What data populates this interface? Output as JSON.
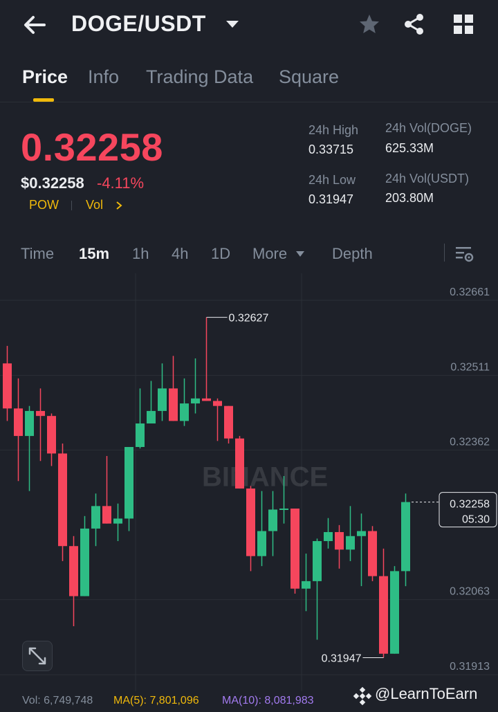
{
  "header": {
    "pair": "DOGE/USDT",
    "icons": [
      "back-arrow-icon",
      "caret-down-icon",
      "star-icon",
      "share-icon",
      "grid-icon"
    ]
  },
  "tabs": [
    {
      "label": "Price",
      "active": true
    },
    {
      "label": "Info",
      "active": false
    },
    {
      "label": "Trading Data",
      "active": false
    },
    {
      "label": "Square",
      "active": false
    }
  ],
  "ticker": {
    "last_price": "0.32258",
    "usd_price": "$0.32258",
    "change": "-4.11%",
    "tags": [
      "POW",
      "Vol"
    ],
    "high_label": "24h High",
    "high_value": "0.33715",
    "low_label": "24h Low",
    "low_value": "0.31947",
    "vol_base_label": "24h Vol(DOGE)",
    "vol_base_value": "625.33M",
    "vol_quote_label": "24h Vol(USDT)",
    "vol_quote_value": "203.80M"
  },
  "intervals": [
    {
      "label": "Time",
      "active": false
    },
    {
      "label": "15m",
      "active": true
    },
    {
      "label": "1h",
      "active": false
    },
    {
      "label": "4h",
      "active": false
    },
    {
      "label": "1D",
      "active": false
    },
    {
      "label": "More",
      "active": false
    },
    {
      "label": "Depth",
      "active": false
    }
  ],
  "colors": {
    "up": "#2ebd85",
    "down": "#f6465d",
    "accent": "#f0b90b",
    "ma5": "#f0b90b",
    "ma10": "#a37bf0"
  },
  "chart_data": {
    "type": "candlestick",
    "ylim": [
      0.3188,
      0.32715
    ],
    "y_ticks": [
      "0.32661",
      "0.32511",
      "0.32362",
      "0.32063",
      "0.31913"
    ],
    "high_marker": "0.32627",
    "low_marker": "0.31947",
    "last_price_label": "0.32258",
    "countdown": "05:30",
    "watermark": "BINANCE",
    "candles": [
      [
        0.32535,
        0.32445,
        0.3257,
        0.3242
      ],
      [
        0.32445,
        0.3239,
        0.32505,
        0.323
      ],
      [
        0.3239,
        0.3244,
        0.3245,
        0.3228
      ],
      [
        0.3244,
        0.3243,
        0.32485,
        0.3234
      ],
      [
        0.3243,
        0.32355,
        0.32435,
        0.3233
      ],
      [
        0.32355,
        0.3217,
        0.32375,
        0.3214
      ],
      [
        0.3217,
        0.3207,
        0.3219,
        0.3201
      ],
      [
        0.3207,
        0.32205,
        0.3223,
        0.3207
      ],
      [
        0.32205,
        0.3225,
        0.32275,
        0.3217
      ],
      [
        0.3225,
        0.32215,
        0.3235,
        0.32215
      ],
      [
        0.32215,
        0.32225,
        0.32255,
        0.3218
      ],
      [
        0.32225,
        0.32368,
        0.32368,
        0.322
      ],
      [
        0.32368,
        0.32415,
        0.32485,
        0.32365
      ],
      [
        0.32415,
        0.3244,
        0.325,
        0.3242
      ],
      [
        0.3244,
        0.32485,
        0.32535,
        0.3242
      ],
      [
        0.32485,
        0.3242,
        0.3255,
        0.3242
      ],
      [
        0.3242,
        0.32455,
        0.32505,
        0.3241
      ],
      [
        0.32455,
        0.32465,
        0.32545,
        0.32435
      ],
      [
        0.32465,
        0.3246,
        0.32627,
        0.3246
      ],
      [
        0.3246,
        0.3245,
        0.32465,
        0.3238
      ],
      [
        0.3245,
        0.32385,
        0.3245,
        0.32375
      ],
      [
        0.32385,
        0.32285,
        0.3239,
        0.32285
      ],
      [
        0.32285,
        0.3215,
        0.3229,
        0.3212
      ],
      [
        0.3215,
        0.322,
        0.3228,
        0.3213
      ],
      [
        0.322,
        0.32243,
        0.3228,
        0.3215
      ],
      [
        0.32243,
        0.32245,
        0.3231,
        0.32215
      ],
      [
        0.32245,
        0.32085,
        0.32245,
        0.32075
      ],
      [
        0.32085,
        0.321,
        0.32155,
        0.3204
      ],
      [
        0.321,
        0.3218,
        0.32185,
        0.31983
      ],
      [
        0.3218,
        0.32198,
        0.32226,
        0.32165
      ],
      [
        0.32198,
        0.32163,
        0.32212,
        0.32125
      ],
      [
        0.32163,
        0.3219,
        0.3225,
        0.3214
      ],
      [
        0.3219,
        0.322,
        0.32235,
        0.3209
      ],
      [
        0.322,
        0.3211,
        0.3221,
        0.321
      ],
      [
        0.3211,
        0.31955,
        0.32165,
        0.31947
      ],
      [
        0.31955,
        0.3212,
        0.3213,
        0.31955
      ],
      [
        0.3212,
        0.32258,
        0.32275,
        0.3209
      ]
    ]
  },
  "footer": {
    "vol": "Vol: 6,749,748",
    "ma5": "MA(5): 7,801,096",
    "ma10": "MA(10): 8,081,983"
  },
  "watermark_text": "@LearnToEarn"
}
